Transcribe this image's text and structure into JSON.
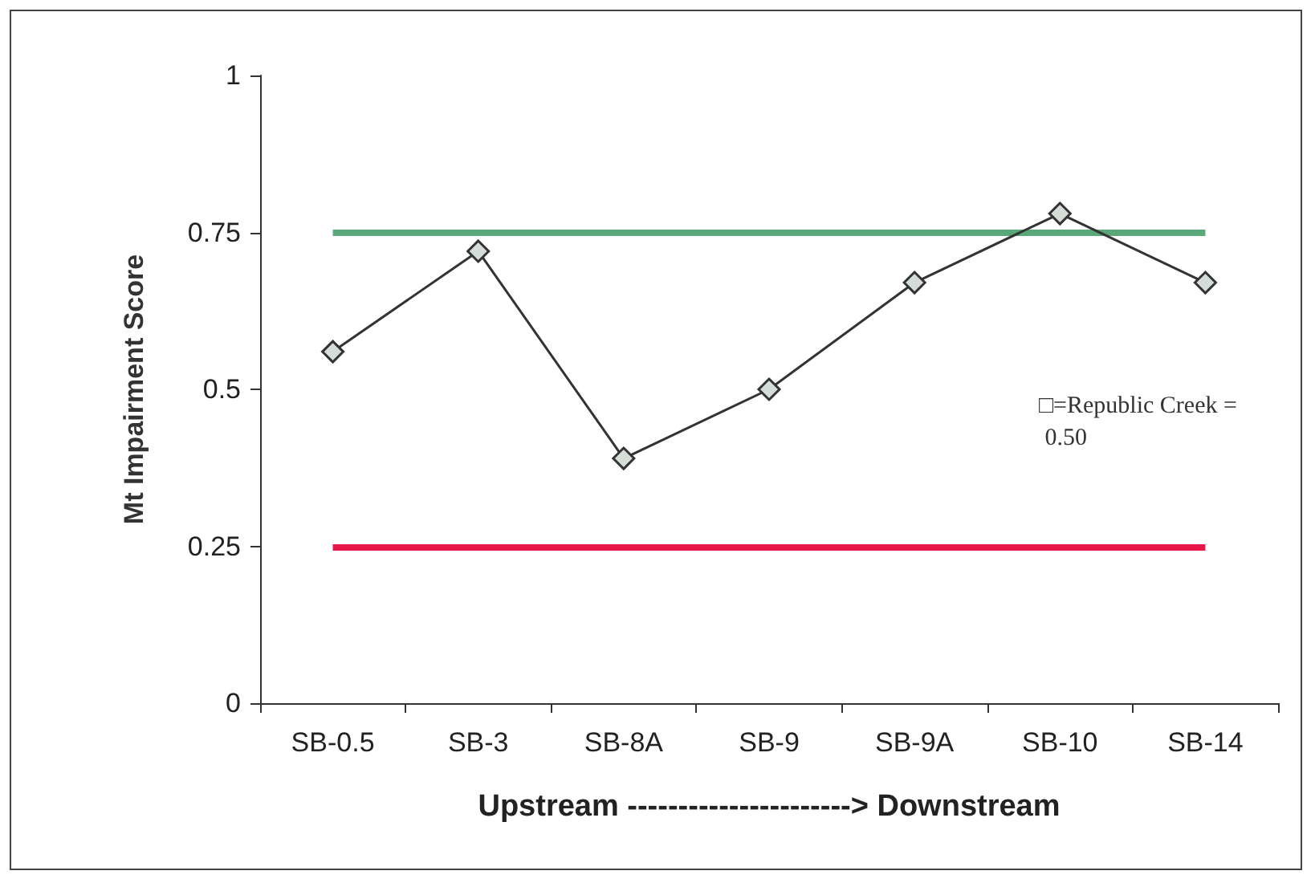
{
  "chart_data": {
    "type": "line",
    "xlabel": "Upstream ----------------------> Downstream",
    "ylabel": "Mt Impairment Score",
    "categories": [
      "SB-0.5",
      "SB-3",
      "SB-8A",
      "SB-9",
      "SB-9A",
      "SB-10",
      "SB-14"
    ],
    "series": [
      {
        "color": "#333333",
        "values": [
          0.56,
          0.72,
          0.39,
          0.5,
          0.67,
          0.78,
          0.67
        ]
      }
    ],
    "ylim": [
      0,
      1
    ],
    "yticks": [
      0,
      0.25,
      0.5,
      0.75,
      1
    ],
    "grid": false,
    "marker": "diamond",
    "line_style": "solid",
    "ref_lines": [
      {
        "axis": "y",
        "value": 0.75,
        "color": "#5aa87a"
      },
      {
        "axis": "y",
        "value": 0.25,
        "color": "#e8174a"
      }
    ],
    "annotations": [
      "□=Republic Creek = 0.50"
    ]
  }
}
